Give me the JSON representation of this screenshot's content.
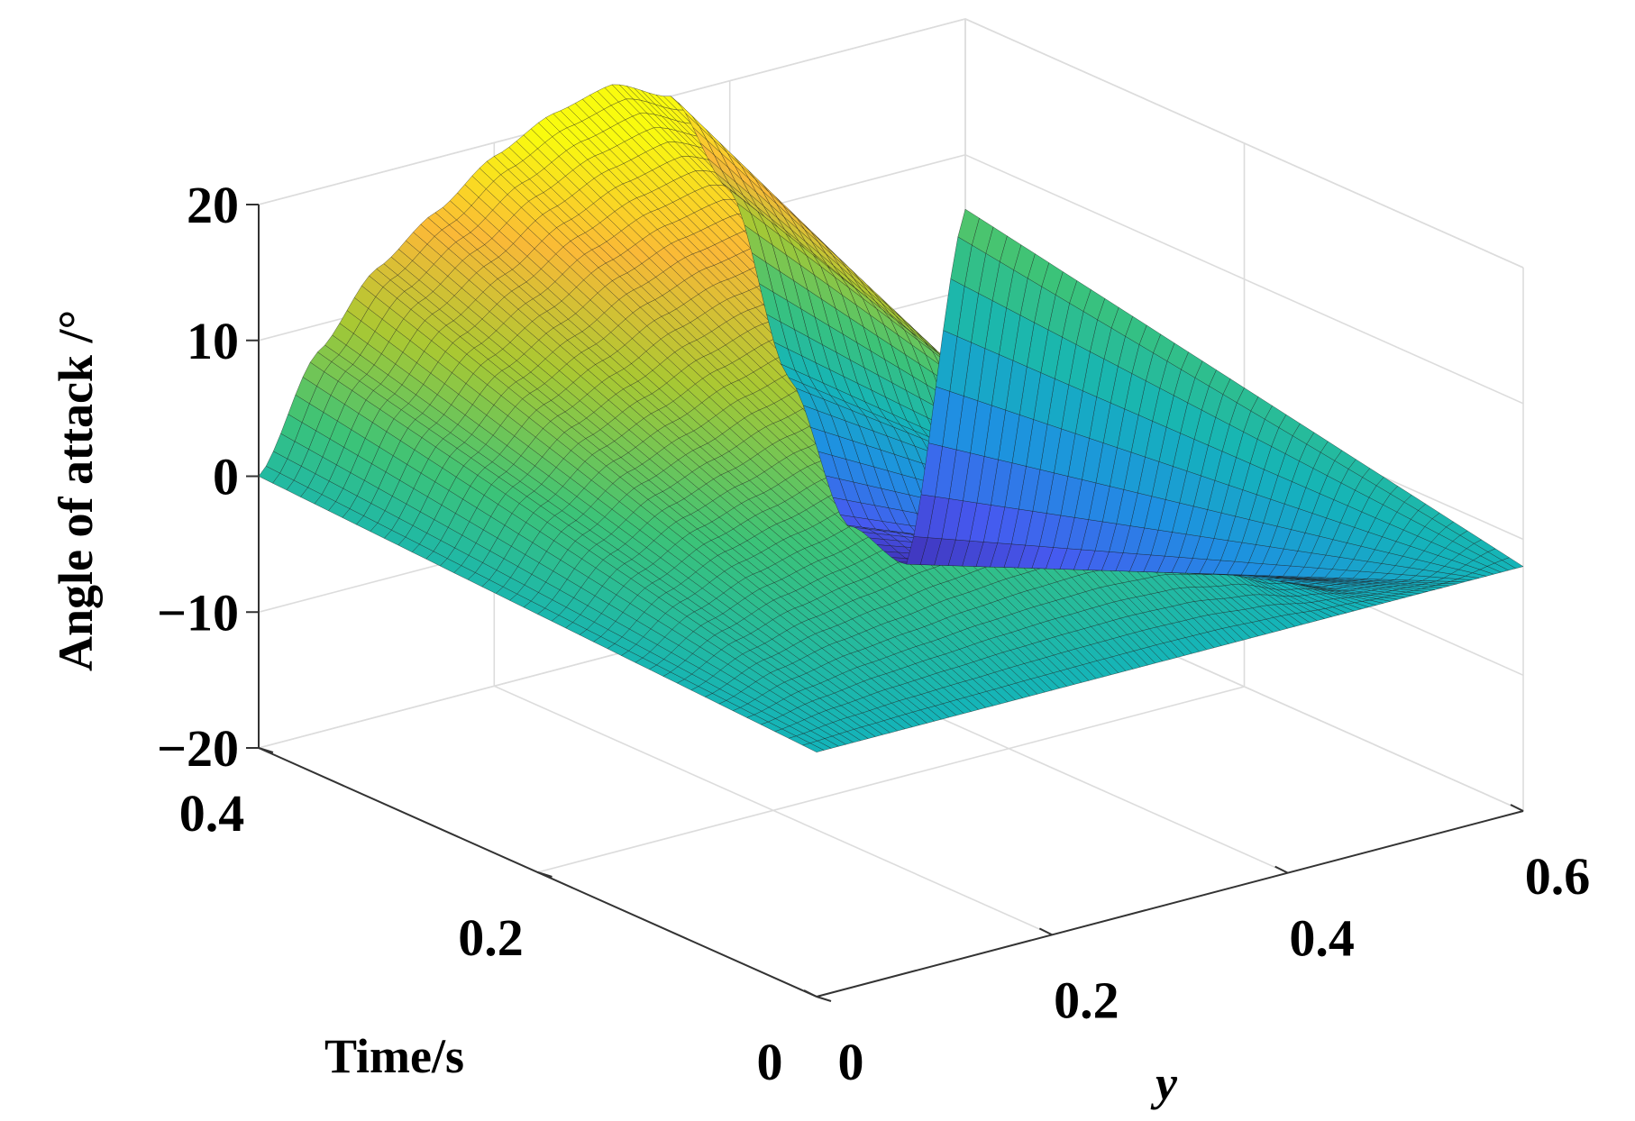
{
  "chart_data": {
    "type": "surface",
    "xlabel": "y",
    "ylabel": "Time/s",
    "zlabel": "Angle of attack /°",
    "xlim": [
      0,
      0.6
    ],
    "ylim": [
      0,
      0.4
    ],
    "zlim": [
      -20,
      20
    ],
    "xticks": [
      {
        "value": 0,
        "label": "0"
      },
      {
        "value": 0.2,
        "label": "0.2"
      },
      {
        "value": 0.4,
        "label": "0.4"
      },
      {
        "value": 0.6,
        "label": "0.6"
      }
    ],
    "yticks": [
      {
        "value": 0,
        "label": "0"
      },
      {
        "value": 0.2,
        "label": "0.2"
      },
      {
        "value": 0.4,
        "label": "0.4"
      }
    ],
    "zticks": [
      {
        "value": -20,
        "label": "−20"
      },
      {
        "value": -10,
        "label": "−10"
      },
      {
        "value": 0,
        "label": "0"
      },
      {
        "value": 10,
        "label": "10"
      },
      {
        "value": 20,
        "label": "20"
      }
    ],
    "grid": true,
    "colormap": "parula",
    "surface": {
      "y_samples": [
        0,
        0.05,
        0.1,
        0.15,
        0.2,
        0.25,
        0.3,
        0.35,
        0.4,
        0.45,
        0.5,
        0.55,
        0.6
      ],
      "time_samples": [
        0,
        0.1,
        0.2,
        0.3,
        0.4
      ],
      "angle_at_time_0": [
        -2,
        -2,
        -2,
        -2,
        -2,
        -2,
        -2,
        -2,
        -2,
        -2,
        -2,
        -2,
        -2
      ],
      "angle_at_time_0.4": [
        0,
        8,
        13,
        16,
        19,
        21,
        22,
        20,
        12,
        -3,
        -15,
        -19,
        6
      ]
    }
  }
}
